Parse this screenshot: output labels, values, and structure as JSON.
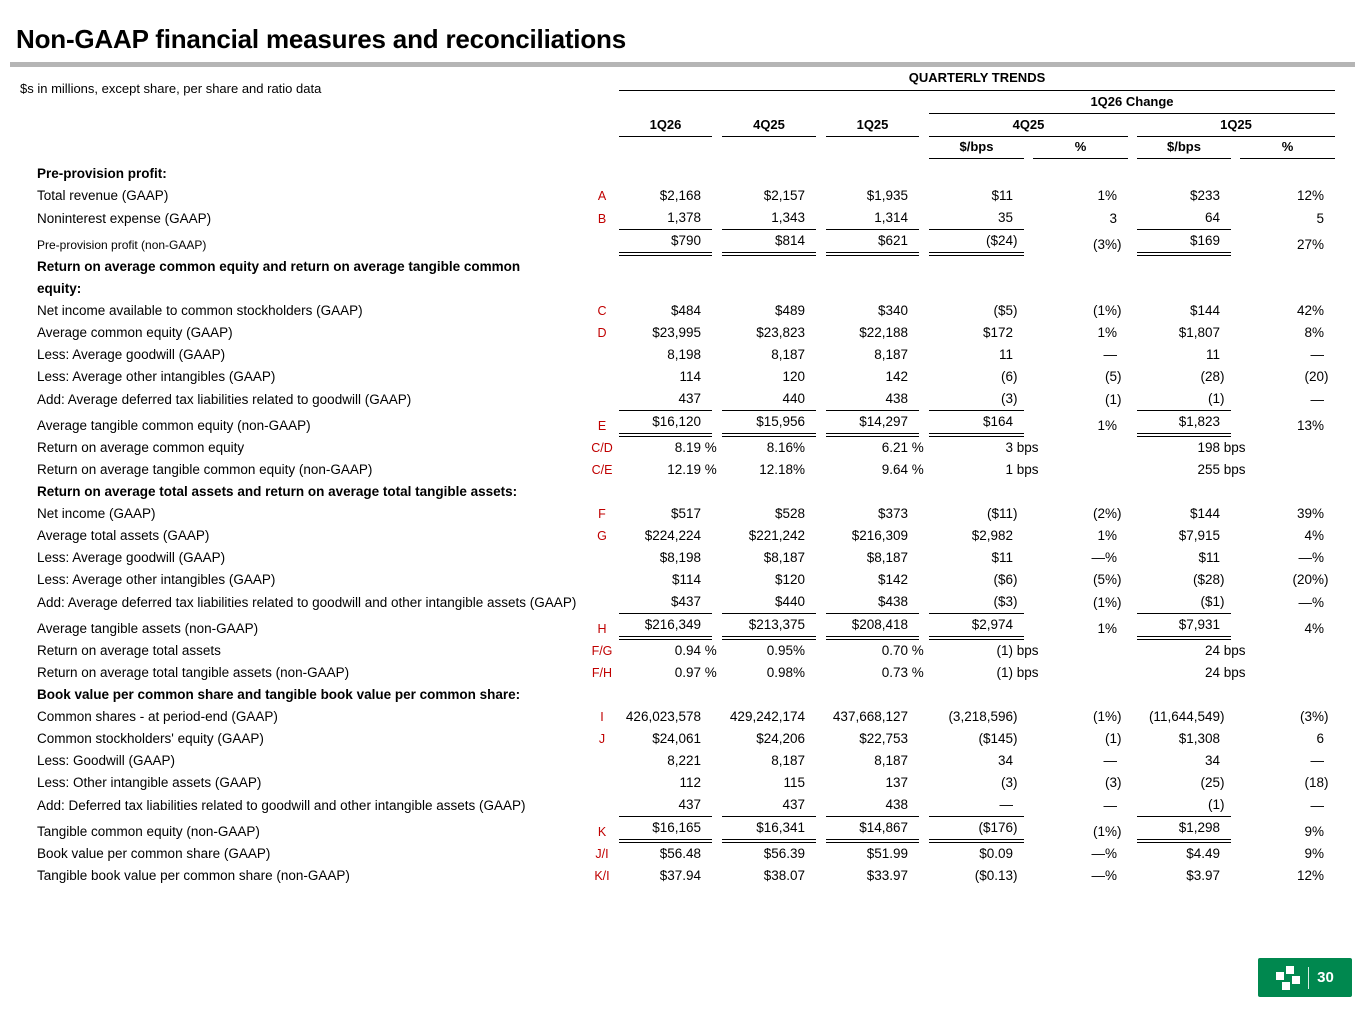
{
  "page": {
    "title": "Non-GAAP financial measures and reconciliations",
    "subtitle": "$s in millions, except share, per share and ratio data",
    "page_number": "30",
    "logo": "citizens-pinwheel-mark"
  },
  "colors": {
    "ref_red": "#C00000",
    "brand_green": "#00884F",
    "rule_gray": "#B5B5B5",
    "header_line": "#000000"
  },
  "table": {
    "group_header": "QUARTERLY TRENDS",
    "change_header": "1Q26 Change",
    "quarter_columns": [
      "1Q26",
      "4Q25",
      "1Q25"
    ],
    "change_groups": [
      {
        "label": "4Q25",
        "sub": [
          "$/bps",
          "%"
        ]
      },
      {
        "label": "1Q25",
        "sub": [
          "$/bps",
          "%"
        ]
      }
    ],
    "rows": [
      {
        "type": "section",
        "label": "Pre-provision profit:"
      },
      {
        "label": "Total revenue (GAAP)",
        "ref": "A",
        "values": [
          "$2,168",
          "$2,157",
          "$1,935",
          "$11",
          "1%",
          "$233",
          "12%"
        ]
      },
      {
        "label": "Noninterest expense (GAAP)",
        "ref": "B",
        "values": [
          "1,378",
          "1,343",
          "1,314",
          "35",
          "3",
          "64",
          "5"
        ],
        "border": "single"
      },
      {
        "label": "Pre-provision profit (non-GAAP)",
        "small": true,
        "values": [
          "$790",
          "$814",
          "$621",
          "($24)",
          "(3%)",
          "$169",
          "27%"
        ],
        "border": "double"
      },
      {
        "type": "section",
        "label": "Return on average common equity and return on average tangible common equity:"
      },
      {
        "label": "Net income available to common stockholders (GAAP)",
        "ref": "C",
        "values": [
          "$484",
          "$489",
          "$340",
          "($5)",
          "(1%)",
          "$144",
          "42%"
        ]
      },
      {
        "label": "Average common equity (GAAP)",
        "ref": "D",
        "values": [
          "$23,995",
          "$23,823",
          "$22,188",
          "$172",
          "1%",
          "$1,807",
          "8%"
        ]
      },
      {
        "label": "Less: Average goodwill (GAAP)",
        "values": [
          "8,198",
          "8,187",
          "8,187",
          "11",
          "—",
          "11",
          "—"
        ]
      },
      {
        "label": "Less: Average other intangibles (GAAP)",
        "values": [
          "114",
          "120",
          "142",
          "(6)",
          "(5)",
          "(28)",
          "(20)"
        ]
      },
      {
        "label": "Add: Average deferred tax liabilities related to goodwill (GAAP)",
        "values": [
          "437",
          "440",
          "438",
          "(3)",
          "(1)",
          "(1)",
          "—"
        ],
        "border": "single"
      },
      {
        "label": "Average tangible common equity (non-GAAP)",
        "ref": "E",
        "values": [
          "$16,120",
          "$15,956",
          "$14,297",
          "$164",
          "1%",
          "$1,823",
          "13%"
        ],
        "border": "double"
      },
      {
        "label": "Return on average common equity",
        "ref": "C/D",
        "values": [
          "8.19 %",
          "8.16%",
          "6.21 %",
          "3 bps",
          "",
          "198 bps",
          ""
        ]
      },
      {
        "label": "Return on average tangible common equity (non-GAAP)",
        "ref": "C/E",
        "values": [
          "12.19 %",
          "12.18%",
          "9.64 %",
          "1 bps",
          "",
          "255 bps",
          ""
        ]
      },
      {
        "type": "section",
        "label": "Return on average total assets and return on average total tangible assets:"
      },
      {
        "label": "Net income (GAAP)",
        "ref": "F",
        "values": [
          "$517",
          "$528",
          "$373",
          "($11)",
          "(2%)",
          "$144",
          "39%"
        ]
      },
      {
        "label": "Average total assets (GAAP)",
        "ref": "G",
        "values": [
          "$224,224",
          "$221,242",
          "$216,309",
          "$2,982",
          "1%",
          "$7,915",
          "4%"
        ]
      },
      {
        "label": "Less: Average goodwill (GAAP)",
        "values": [
          "$8,198",
          "$8,187",
          "$8,187",
          "$11",
          "—%",
          "$11",
          "—%"
        ]
      },
      {
        "label": "Less: Average other intangibles (GAAP)",
        "values": [
          "$114",
          "$120",
          "$142",
          "($6)",
          "(5%)",
          "($28)",
          "(20%)"
        ]
      },
      {
        "label": "Add: Average deferred tax liabilities related to goodwill and other intangible assets (GAAP)",
        "values": [
          "$437",
          "$440",
          "$438",
          "($3)",
          "(1%)",
          "($1)",
          "—%"
        ],
        "border": "single"
      },
      {
        "label": "Average tangible assets (non-GAAP)",
        "ref": "H",
        "values": [
          "$216,349",
          "$213,375",
          "$208,418",
          "$2,974",
          "1%",
          "$7,931",
          "4%"
        ],
        "border": "double"
      },
      {
        "label": "Return on average total assets",
        "ref": "F/G",
        "values": [
          "0.94 %",
          "0.95%",
          "0.70 %",
          "(1) bps",
          "",
          "24 bps",
          ""
        ]
      },
      {
        "label": "Return on average total tangible assets (non-GAAP)",
        "ref": "F/H",
        "values": [
          "0.97 %",
          "0.98%",
          "0.73 %",
          "(1) bps",
          "",
          "24 bps",
          ""
        ]
      },
      {
        "type": "section",
        "label": "Book value per common share and tangible book value per common share:"
      },
      {
        "label": "Common shares - at period-end (GAAP)",
        "ref": "I",
        "values": [
          "426,023,578",
          "429,242,174",
          "437,668,127",
          "(3,218,596)",
          "(1%)",
          "(11,644,549)",
          "(3%)"
        ]
      },
      {
        "label": "Common stockholders' equity (GAAP)",
        "ref": "J",
        "values": [
          "$24,061",
          "$24,206",
          "$22,753",
          "($145)",
          "(1)",
          "$1,308",
          "6"
        ]
      },
      {
        "label": "Less: Goodwill (GAAP)",
        "values": [
          "8,221",
          "8,187",
          "8,187",
          "34",
          "—",
          "34",
          "—"
        ]
      },
      {
        "label": "Less: Other intangible assets (GAAP)",
        "values": [
          "112",
          "115",
          "137",
          "(3)",
          "(3)",
          "(25)",
          "(18)"
        ]
      },
      {
        "label": "Add: Deferred tax liabilities related to goodwill and other intangible assets (GAAP)",
        "values": [
          "437",
          "437",
          "438",
          "—",
          "—",
          "(1)",
          "—"
        ],
        "border": "single"
      },
      {
        "label": "Tangible common equity (non-GAAP)",
        "ref": "K",
        "values": [
          "$16,165",
          "$16,341",
          "$14,867",
          "($176)",
          "(1%)",
          "$1,298",
          "9%"
        ],
        "border": "double"
      },
      {
        "label": "Book value per common share (GAAP)",
        "ref": "J/I",
        "values": [
          "$56.48",
          "$56.39",
          "$51.99",
          "$0.09",
          "—%",
          "$4.49",
          "9%"
        ]
      },
      {
        "label": "Tangible book value per common share (non-GAAP)",
        "ref": "K/I",
        "values": [
          "$37.94",
          "$38.07",
          "$33.97",
          "($0.13)",
          "—%",
          "$3.97",
          "12%"
        ]
      }
    ]
  }
}
